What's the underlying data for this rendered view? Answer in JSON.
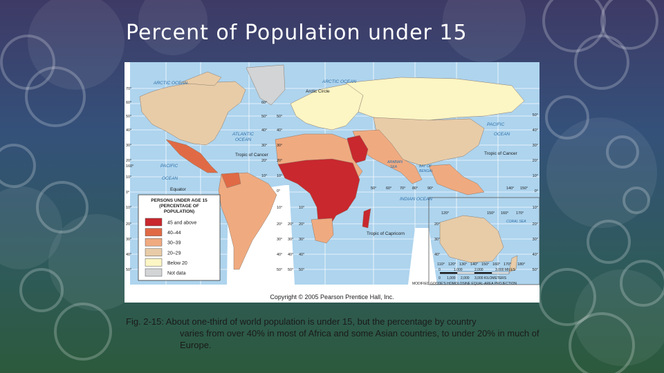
{
  "slide": {
    "title": "Percent of Population under 15",
    "caption_lead": "Fig. 2-15: About one-third of world population is under 15, but the percentage by country",
    "caption_rest": "varies from over 40% in most of Africa and some Asian countries, to under 20% in much of Europe."
  },
  "map": {
    "copyright": "Copyright © 2005 Pearson Prentice Hall, Inc.",
    "projection": "MODIFIED GOODE'S HOMOLOSINE EQUAL-AREA PROJECTION",
    "legend": {
      "title_line1": "PERSONS UNDER AGE 15",
      "title_line2": "(PERCENTAGE OF",
      "title_line3": "POPULATION)",
      "items": [
        {
          "label": "45 and above",
          "color": "#c8282e"
        },
        {
          "label": "40–44",
          "color": "#e06a45"
        },
        {
          "label": "30–39",
          "color": "#f0aa80"
        },
        {
          "label": "20–29",
          "color": "#e8cca8"
        },
        {
          "label": "Below 20",
          "color": "#fcf5c4"
        },
        {
          "label": "Not data",
          "color": "#d2d4d6"
        }
      ]
    },
    "labels": {
      "arctic_ocean_w": "ARCTIC OCEAN",
      "arctic_ocean_e": "ARCTIC OCEAN",
      "arctic_circle": "Arctic Circle",
      "atlantic_ocean_1": "ATLANTIC",
      "atlantic_ocean_2": "OCEAN",
      "pacific_ocean_w1": "PACIFIC",
      "pacific_ocean_w2": "OCEAN",
      "pacific_ocean_e1": "PACIFIC",
      "pacific_ocean_e2": "OCEAN",
      "indian_ocean": "INDIAN    OCEAN",
      "tropic_cancer_w": "Tropic of Cancer",
      "tropic_cancer_e": "Tropic of Cancer",
      "tropic_capricorn": "Tropic of Capricorn",
      "equator": "Equator",
      "arabian_sea_1": "ARABIAN",
      "arabian_sea_2": "SEA",
      "bay_bengal_1": "BAY OF",
      "bay_bengal_2": "BENGAL",
      "coral_sea": "CORAL SEA"
    },
    "scale": {
      "miles": [
        "0",
        "1,000",
        "2,000",
        "3,000 MILES"
      ],
      "km": [
        "0",
        "1,000",
        "2,000",
        "3,000 KILOMETERS"
      ]
    },
    "lat_left": [
      "70°",
      "60°",
      "50°",
      "40°",
      "30°",
      "20°",
      "160°",
      "10°",
      "0°",
      "10°",
      "20°",
      "30°",
      "40°",
      "50°"
    ],
    "lat_mid_w": [
      "60°",
      "50°",
      "40°",
      "30°",
      "20°",
      "10°"
    ],
    "lat_mid_e": [
      "50°",
      "40°",
      "30°",
      "20°",
      "10°",
      "0°",
      "10°",
      "20°",
      "30°",
      "40°",
      "50°"
    ],
    "lat_s_w": [
      "20°",
      "30°",
      "40°",
      "50°"
    ],
    "lat_s_e": [
      "10°",
      "20°",
      "30°",
      "40°",
      "50°"
    ],
    "lat_right": [
      "50°",
      "40°",
      "30°",
      "20°",
      "10°",
      "0°",
      "10°",
      "20°",
      "30°",
      "40°",
      "50°"
    ],
    "lat_australia": [
      "20°",
      "30°",
      "40°"
    ],
    "lon_row1": [
      "50°",
      "60°",
      "70°",
      "80°",
      "90°"
    ],
    "lon_row2": [
      "140°",
      "150°"
    ],
    "lon_row3": [
      "120°",
      "150°",
      "160°",
      "170°"
    ],
    "lon_bottom": [
      "110°",
      "120°",
      "130°",
      "140°",
      "150°",
      "160°",
      "170°",
      "180°"
    ]
  }
}
